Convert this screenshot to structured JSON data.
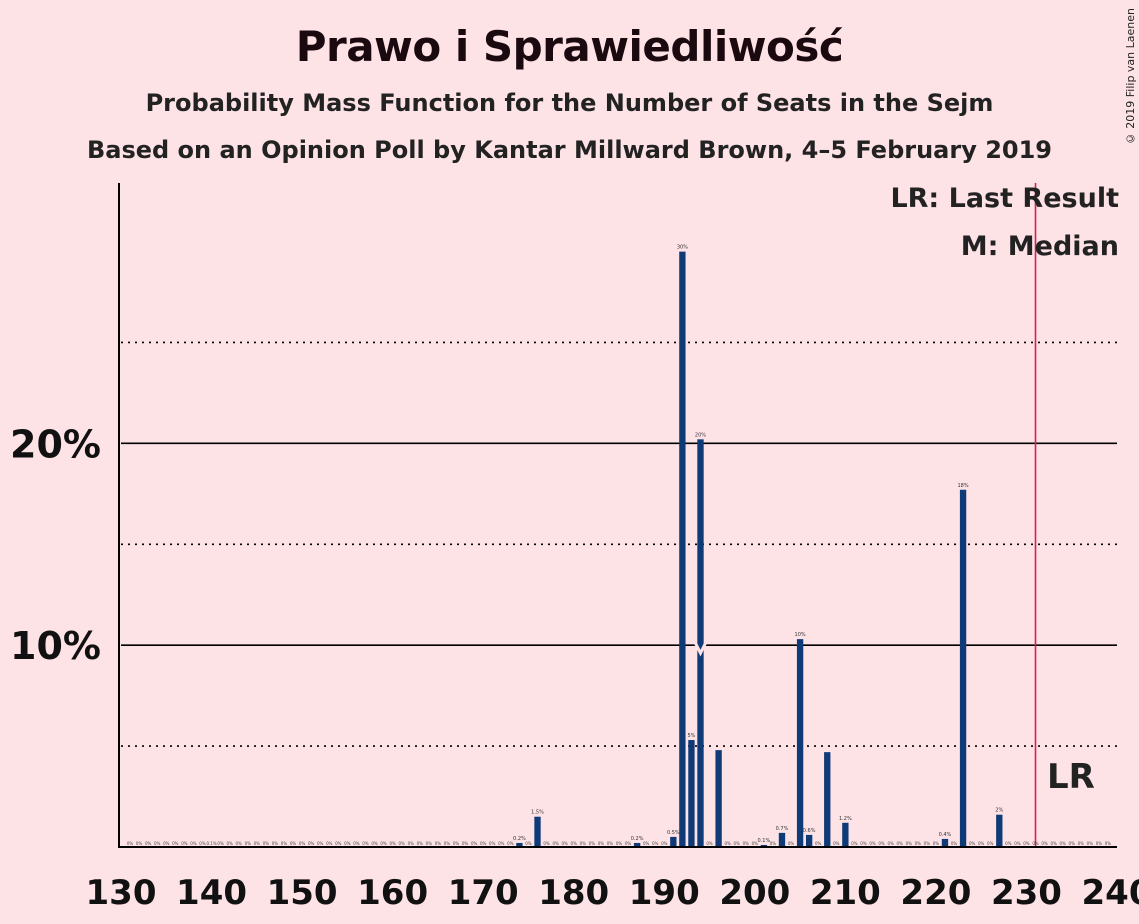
{
  "title": "Prawo i Sprawiedliwość",
  "subtitle1": "Probability Mass Function for the Number of Seats in the Sejm",
  "subtitle2": "Based on an Opinion Poll by Kantar Millward Brown, 4–5 February 2019",
  "copyright": "© 2019 Filip van Laenen",
  "legend": {
    "last_result": "LR: Last Result",
    "median": "M: Median"
  },
  "lr_label": "LR",
  "colors": {
    "background": "#fde2e6",
    "bar": "#0e3b78",
    "last_result_line": "#d6204f",
    "axis": "#000000"
  },
  "chart_data": {
    "type": "bar",
    "title": "Prawo i Sprawiedliwość",
    "xlabel": "",
    "ylabel": "",
    "xlim": [
      130,
      240
    ],
    "ylim": [
      0,
      32.9
    ],
    "x_ticks": [
      "130",
      "140",
      "150",
      "160",
      "170",
      "180",
      "190",
      "200",
      "210",
      "220",
      "230",
      "240"
    ],
    "y_ticks": [
      {
        "value": 10,
        "label": "10%"
      },
      {
        "value": 20,
        "label": "20%"
      }
    ],
    "dotted_gridlines": [
      5,
      15,
      25
    ],
    "last_result": 231,
    "median": 194,
    "bars": [
      {
        "seats": 174,
        "pct": 0.2,
        "label": "0.2%"
      },
      {
        "seats": 176,
        "pct": 1.5,
        "label": "1.5%"
      },
      {
        "seats": 187,
        "pct": 0.2,
        "label": "0.2%"
      },
      {
        "seats": 191,
        "pct": 0.5,
        "label": "0.5%"
      },
      {
        "seats": 192,
        "pct": 29.5,
        "label": "30%"
      },
      {
        "seats": 193,
        "pct": 5.3,
        "label": "5%"
      },
      {
        "seats": 194,
        "pct": 20.2,
        "label": "20%"
      },
      {
        "seats": 196,
        "pct": 4.8,
        "label": ""
      },
      {
        "seats": 201,
        "pct": 0.1,
        "label": "0.1%"
      },
      {
        "seats": 203,
        "pct": 0.7,
        "label": "0.7%"
      },
      {
        "seats": 205,
        "pct": 10.3,
        "label": "10%"
      },
      {
        "seats": 206,
        "pct": 0.6,
        "label": "0.6%"
      },
      {
        "seats": 208,
        "pct": 4.7,
        "label": ""
      },
      {
        "seats": 210,
        "pct": 1.2,
        "label": "1.2%"
      },
      {
        "seats": 221,
        "pct": 0.4,
        "label": "0.4%"
      },
      {
        "seats": 223,
        "pct": 17.7,
        "label": "18%"
      },
      {
        "seats": 227,
        "pct": 1.6,
        "label": "2%"
      }
    ],
    "zero_label": "0%",
    "minor_labels": [
      {
        "seats": 140,
        "label": "0.1%"
      }
    ]
  }
}
